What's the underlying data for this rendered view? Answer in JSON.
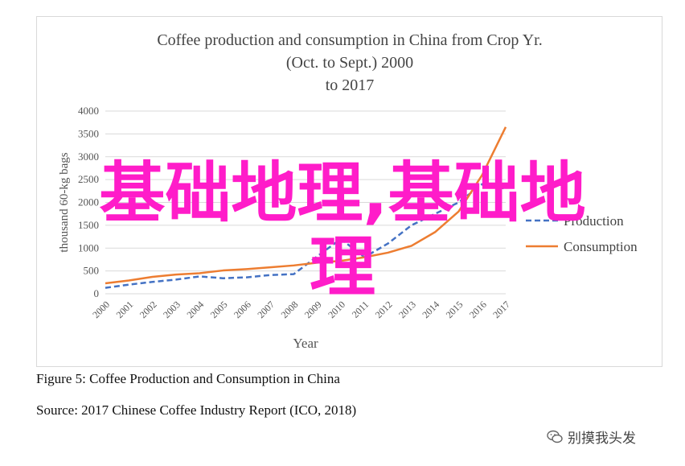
{
  "chart_data": {
    "type": "line",
    "title_lines": [
      "Coffee  production and consumption in China from Crop Yr.",
      "(Oct. to Sept.) 2000",
      "to 2017"
    ],
    "xlabel": "Year",
    "ylabel": "thousand 60-kg bags",
    "ylim": [
      0,
      4000
    ],
    "yticks": [
      0,
      500,
      1000,
      1500,
      2000,
      2500,
      3000,
      3500,
      4000
    ],
    "categories": [
      "2000",
      "2001",
      "2002",
      "2003",
      "2004",
      "2005",
      "2006",
      "2007",
      "2008",
      "2009",
      "2010",
      "2011",
      "2012",
      "2013",
      "2014",
      "2015",
      "2016",
      "2017"
    ],
    "grid": true,
    "legend_position": "right",
    "series": [
      {
        "name": "Production",
        "color": "#4472c4",
        "style": "dashed",
        "values": [
          130,
          200,
          260,
          310,
          380,
          340,
          360,
          410,
          430,
          820,
          1200,
          800,
          1100,
          1500,
          1750,
          2000,
          2400,
          2300
        ]
      },
      {
        "name": "Consumption",
        "color": "#ed7d31",
        "style": "solid",
        "values": [
          230,
          290,
          370,
          420,
          450,
          510,
          540,
          580,
          620,
          680,
          720,
          800,
          900,
          1050,
          1350,
          1800,
          2600,
          3650
        ]
      }
    ]
  },
  "caption": {
    "figure": "Figure 5: Coffee Production and Consumption in China",
    "source": "Source: 2017 Chinese Coffee Industry Report (ICO, 2018)"
  },
  "overlay": {
    "watermark_line1": "基础地理,基础地",
    "watermark_line2": "理",
    "watermark_color": "#ff1cc9",
    "wechat_label": "别摸我头发",
    "wechat_icon": "wechat-icon"
  }
}
